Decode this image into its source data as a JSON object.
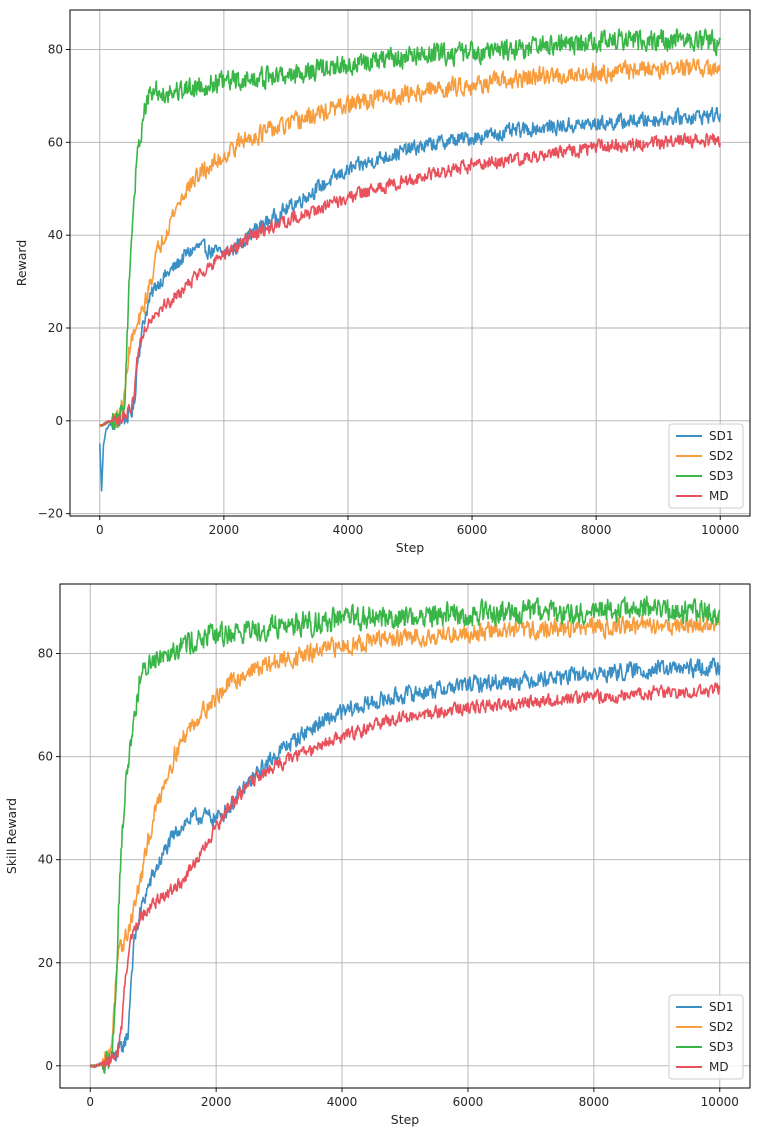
{
  "chart_data": [
    {
      "type": "line",
      "title": "",
      "xlabel": "Step",
      "ylabel": "Reward",
      "xlim": [
        -480,
        10480
      ],
      "ylim": [
        -20.5,
        88.5
      ],
      "xticks": [
        0,
        2000,
        4000,
        6000,
        8000,
        10000
      ],
      "yticks": [
        -20,
        0,
        20,
        40,
        60,
        80
      ],
      "ytick_labels": [
        "−20",
        "0",
        "20",
        "40",
        "60",
        "80"
      ],
      "grid": true,
      "legend_position": "bottom-right",
      "series": [
        {
          "name": "SD1",
          "color": "#3a8fc4",
          "noise": 0.9,
          "x": [
            0,
            30,
            60,
            100,
            150,
            200,
            300,
            400,
            500,
            560,
            600,
            700,
            800,
            900,
            1000,
            1200,
            1400,
            1600,
            1800,
            2000,
            2200,
            2400,
            2600,
            3000,
            3500,
            4000,
            4500,
            5000,
            5500,
            6000,
            6500,
            7000,
            7500,
            8000,
            8500,
            9000,
            9500,
            10000
          ],
          "values": [
            -5,
            -15,
            -5,
            -2,
            -1,
            -0.5,
            0,
            0.5,
            1.5,
            3.5,
            12,
            21,
            26,
            29,
            30.5,
            33,
            36,
            37.5,
            36.5,
            36,
            37.5,
            40,
            42,
            45.5,
            50,
            54,
            56.5,
            58.5,
            60,
            61,
            62,
            63,
            63.5,
            64,
            64.5,
            65,
            65.5,
            66
          ]
        },
        {
          "name": "SD2",
          "color": "#f79d3e",
          "noise": 1.1,
          "x": [
            0,
            50,
            100,
            200,
            300,
            400,
            450,
            500,
            600,
            700,
            800,
            900,
            1000,
            1200,
            1400,
            1600,
            1800,
            2000,
            2200,
            2500,
            3000,
            3500,
            4000,
            4500,
            5000,
            5500,
            6000,
            6500,
            7000,
            7500,
            8000,
            8500,
            9000,
            9500,
            10000
          ],
          "values": [
            -1,
            -1,
            -0.5,
            0,
            0.5,
            5,
            13,
            17,
            20,
            24,
            29,
            35,
            39,
            45,
            50,
            53,
            55,
            57,
            59.5,
            61.5,
            63.5,
            66,
            68,
            69.5,
            70.5,
            71.5,
            72.5,
            73,
            74,
            74.5,
            75,
            75.5,
            76,
            76,
            75.5
          ]
        },
        {
          "name": "SD3",
          "color": "#3ab649",
          "noise": 1.3,
          "x": [
            0,
            50,
            100,
            200,
            300,
            400,
            450,
            500,
            550,
            600,
            650,
            700,
            800,
            900,
            1000,
            1200,
            1500,
            2000,
            2500,
            3000,
            3500,
            4000,
            4500,
            5000,
            5500,
            6000,
            6500,
            7000,
            7500,
            8000,
            8500,
            9000,
            9500,
            10000
          ],
          "values": [
            -1,
            -1,
            -0.5,
            0,
            0.5,
            3,
            22,
            37,
            48,
            56,
            61,
            66,
            70,
            71,
            70.5,
            71,
            72,
            73,
            73.5,
            74.5,
            75.5,
            76.5,
            77.5,
            78.5,
            79,
            79.5,
            80,
            80.5,
            81,
            81.5,
            82,
            82,
            82,
            81.5
          ]
        },
        {
          "name": "MD",
          "color": "#e8515b",
          "noise": 0.8,
          "x": [
            0,
            50,
            100,
            200,
            300,
            400,
            500,
            550,
            600,
            650,
            700,
            800,
            900,
            1000,
            1200,
            1400,
            1600,
            1800,
            2000,
            2200,
            2400,
            2600,
            3000,
            3500,
            4000,
            4500,
            5000,
            5500,
            6000,
            6500,
            7000,
            7500,
            8000,
            8500,
            9000,
            9500,
            10000
          ],
          "values": [
            -1,
            -1,
            -0.5,
            0,
            0.5,
            1,
            2,
            6,
            13,
            17,
            19,
            22,
            23.5,
            24.5,
            26.5,
            29,
            32,
            33.5,
            35.5,
            37.5,
            39.5,
            41,
            43,
            45.5,
            48,
            50,
            52,
            53.5,
            55,
            56,
            57,
            58,
            59,
            59.5,
            60,
            60.5,
            60.5
          ]
        }
      ]
    },
    {
      "type": "line",
      "title": "",
      "xlabel": "Step",
      "ylabel": "Skill Reward",
      "xlim": [
        -480,
        10480
      ],
      "ylim": [
        -4.3,
        93.5
      ],
      "xticks": [
        0,
        2000,
        4000,
        6000,
        8000,
        10000
      ],
      "yticks": [
        0,
        20,
        40,
        60,
        80
      ],
      "ytick_labels": [
        "0",
        "20",
        "40",
        "60",
        "80"
      ],
      "grid": true,
      "legend_position": "bottom-right",
      "series": [
        {
          "name": "SD1",
          "color": "#3a8fc4",
          "noise": 0.9,
          "x": [
            0,
            100,
            200,
            300,
            400,
            500,
            600,
            650,
            700,
            800,
            900,
            1000,
            1200,
            1400,
            1600,
            1800,
            2000,
            2200,
            2400,
            2600,
            3000,
            3500,
            4000,
            4500,
            5000,
            5500,
            6000,
            6500,
            7000,
            7500,
            8000,
            8500,
            9000,
            9500,
            10000
          ],
          "values": [
            0,
            0,
            0.5,
            1,
            2,
            3.5,
            6,
            17,
            24,
            30,
            34,
            37,
            42,
            46,
            48,
            48.5,
            48,
            50,
            53,
            56,
            61,
            65.5,
            68.5,
            70.5,
            72,
            73,
            74,
            74.5,
            75,
            75.5,
            76,
            76.5,
            77,
            77,
            77.5
          ]
        },
        {
          "name": "SD2",
          "color": "#f79d3e",
          "noise": 1.0,
          "x": [
            0,
            100,
            200,
            300,
            350,
            400,
            450,
            500,
            600,
            700,
            800,
            900,
            1000,
            1200,
            1400,
            1600,
            1800,
            2000,
            2200,
            2500,
            3000,
            3500,
            4000,
            4500,
            5000,
            5500,
            6000,
            6500,
            7000,
            7500,
            8000,
            8500,
            9000,
            9500,
            10000
          ],
          "values": [
            0,
            0,
            0.5,
            2,
            6,
            15,
            21,
            23,
            26,
            31,
            36,
            42,
            48,
            56,
            62,
            66,
            69,
            71.5,
            74,
            76.5,
            78.5,
            80,
            81.5,
            82.5,
            83,
            83.5,
            84,
            84.5,
            84.5,
            85,
            85,
            85.5,
            85.5,
            85.5,
            85.5
          ]
        },
        {
          "name": "SD3",
          "color": "#3ab649",
          "noise": 1.3,
          "x": [
            0,
            100,
            200,
            300,
            350,
            400,
            450,
            500,
            550,
            600,
            650,
            700,
            750,
            800,
            900,
            1000,
            1200,
            1500,
            2000,
            2500,
            3000,
            3500,
            4000,
            4500,
            5000,
            5500,
            6000,
            6500,
            7000,
            7500,
            8000,
            8500,
            9000,
            9500,
            10000
          ],
          "values": [
            0,
            0,
            0.5,
            1.5,
            4,
            12,
            30,
            44,
            52,
            59,
            63,
            68,
            72,
            75,
            77.5,
            79,
            80.5,
            82,
            83.5,
            84.5,
            85.5,
            86,
            86.5,
            87,
            87,
            87.5,
            87.5,
            88,
            88,
            88,
            88,
            88.5,
            88.5,
            88.5,
            88
          ]
        },
        {
          "name": "MD",
          "color": "#e8515b",
          "noise": 0.7,
          "x": [
            0,
            100,
            200,
            300,
            400,
            450,
            500,
            550,
            600,
            650,
            700,
            800,
            900,
            1000,
            1200,
            1400,
            1600,
            1800,
            2000,
            2200,
            2400,
            2600,
            3000,
            3500,
            4000,
            4500,
            5000,
            5500,
            6000,
            6500,
            7000,
            7500,
            8000,
            8500,
            9000,
            9500,
            10000
          ],
          "values": [
            0,
            0,
            0.5,
            1,
            2,
            3,
            8,
            16,
            21,
            25,
            27,
            29,
            30.5,
            31.5,
            33,
            35,
            38,
            42,
            46,
            50,
            53,
            55.5,
            58.5,
            61.5,
            64,
            66,
            67.5,
            68.5,
            69.5,
            70,
            70.5,
            71,
            71.5,
            72,
            72.5,
            72.5,
            73
          ]
        }
      ]
    }
  ]
}
